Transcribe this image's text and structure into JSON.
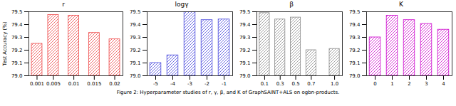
{
  "chart_data": [
    {
      "type": "bar",
      "title": "r",
      "x": [
        0.001,
        0.005,
        0.01,
        0.015,
        0.02
      ],
      "values": [
        79.25,
        79.475,
        79.47,
        79.335,
        79.285
      ],
      "color": "#EE4444",
      "xlim": [
        -0.001,
        0.022
      ],
      "xticks": [
        0.001,
        0.005,
        0.01,
        0.015,
        0.02
      ],
      "ylim": [
        79.0,
        79.5
      ],
      "yticks": [
        {
          "value": 79.0,
          "label": "79.0"
        },
        79.1,
        79.2,
        79.3,
        79.4,
        79.5
      ],
      "ylabel": "Test Accuracy (%)",
      "grid": false
    },
    {
      "type": "bar",
      "title": "logγ",
      "x": [
        -5,
        -4,
        -3,
        -2,
        -1
      ],
      "values": [
        79.1,
        79.16,
        79.5,
        79.435,
        79.44
      ],
      "color": "#4444DD",
      "xlim": [
        -5.5,
        -0.5
      ],
      "xticks": [
        -5,
        -4,
        -3,
        -2,
        -1
      ],
      "ylim": [
        79.0,
        79.5
      ],
      "yticks": [
        {
          "value": 79.0,
          "label": "79.0"
        },
        79.1,
        79.2,
        79.3,
        79.4,
        79.5
      ],
      "grid": false
    },
    {
      "type": "bar",
      "title": "β",
      "x": [
        0.1,
        0.3,
        0.5,
        0.7,
        1.0
      ],
      "values": [
        79.49,
        79.44,
        79.455,
        79.2,
        79.21
      ],
      "color": "#888888",
      "xlim": [
        0,
        1.1
      ],
      "xticks": [
        0.1,
        0.3,
        0.5,
        0.7,
        {
          "value": 1.0,
          "label": "1.0"
        }
      ],
      "ylim": [
        79.0,
        79.5
      ],
      "yticks": [
        {
          "value": 79.0,
          "label": "79.0"
        },
        79.1,
        79.2,
        79.3,
        79.4,
        79.5
      ],
      "grid": false
    },
    {
      "type": "bar",
      "title": "K",
      "x": [
        0,
        1,
        2,
        3,
        4
      ],
      "values": [
        79.3,
        79.47,
        79.435,
        79.405,
        79.36
      ],
      "color": "#CC00CC",
      "xlim": [
        -0.5,
        4.5
      ],
      "xticks": [
        0,
        1,
        2,
        3,
        4
      ],
      "ylim": [
        79.0,
        79.5
      ],
      "yticks": [
        {
          "value": 79.0,
          "label": "79.0"
        },
        79.1,
        79.2,
        79.3,
        79.4,
        79.5
      ],
      "grid": false
    }
  ],
  "caption": "Figure 2: Hyperparameter studies of r, γ, β, and K of GraphSAINT+ALS on ogbn-products."
}
